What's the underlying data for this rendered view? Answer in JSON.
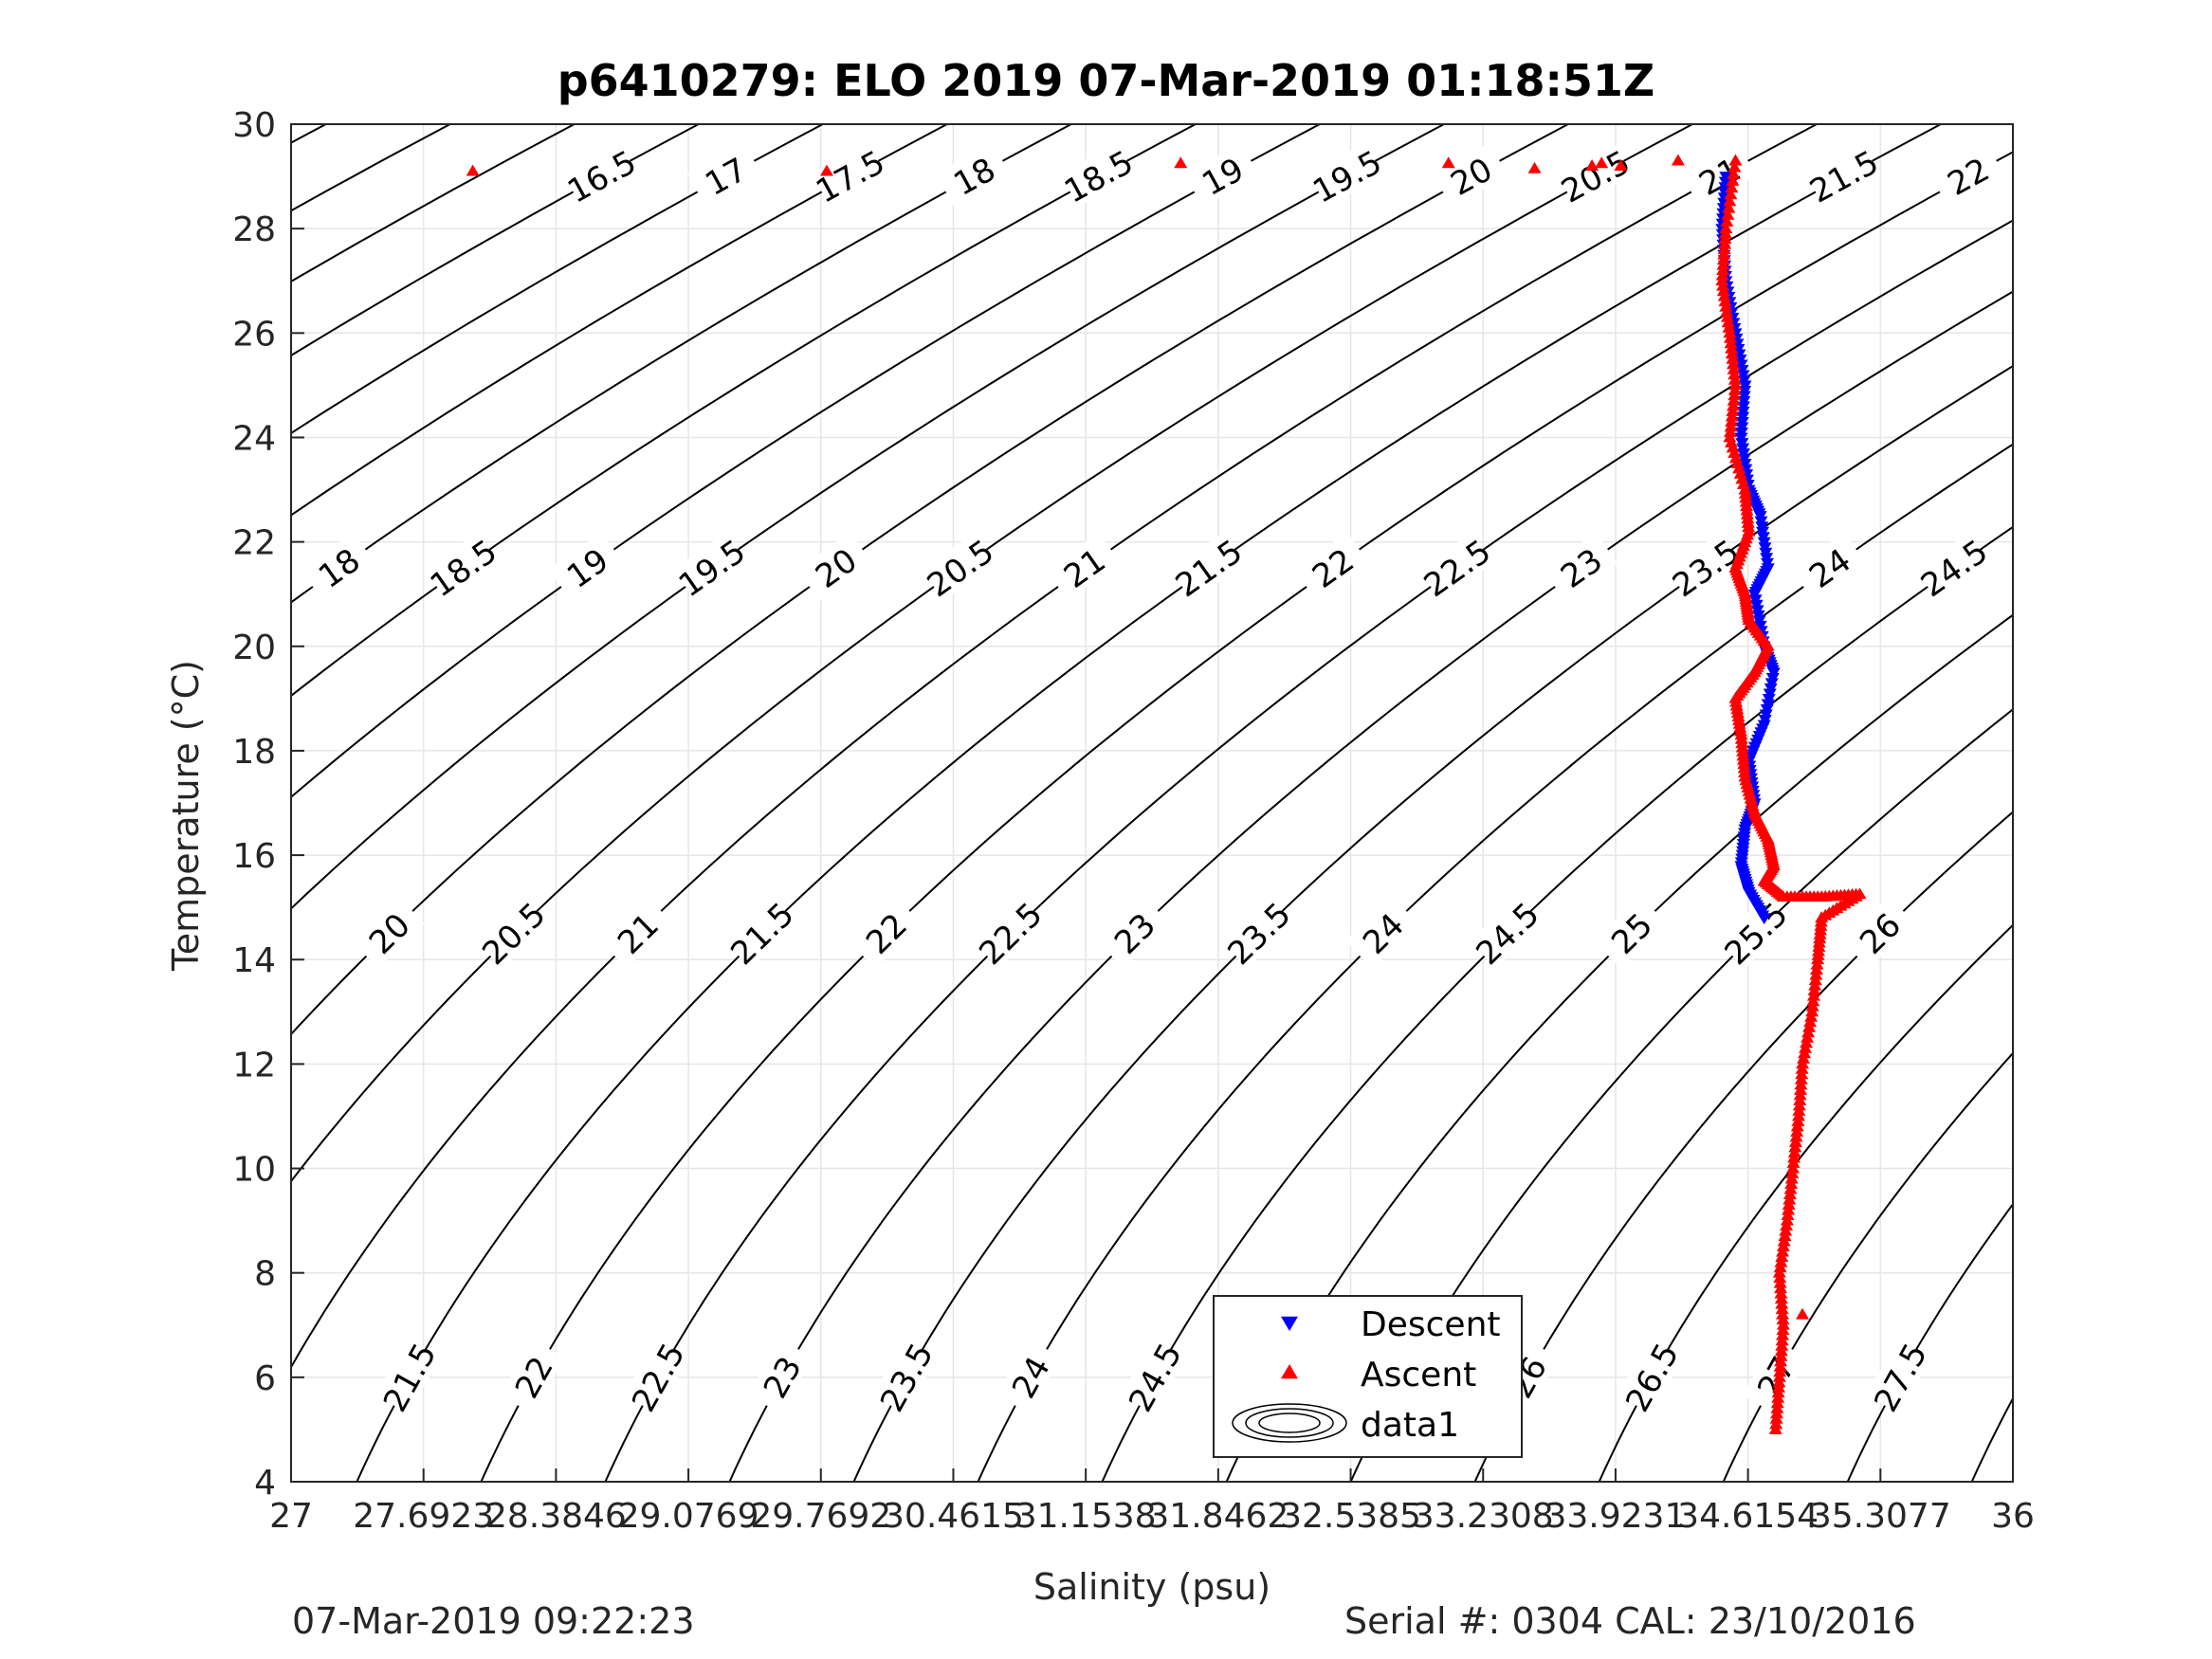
{
  "chart_data": {
    "type": "scatter",
    "title": "p6410279: ELO 2019 07-Mar-2019 01:18:51Z",
    "xlabel": "Salinity (psu)",
    "ylabel": "Temperature (°C)",
    "xlim": [
      27,
      36
    ],
    "ylim": [
      4,
      30
    ],
    "grid": true,
    "x_tick_labels": [
      "27",
      "27.6923",
      "28.3846",
      "29.0769",
      "29.7692",
      "30.4615",
      "31.1538",
      "31.8462",
      "32.5385",
      "33.2308",
      "33.9231",
      "34.6154",
      "35.3077",
      "36"
    ],
    "y_tick_labels": [
      "4",
      "6",
      "8",
      "10",
      "12",
      "14",
      "16",
      "18",
      "20",
      "22",
      "24",
      "26",
      "28",
      "30"
    ],
    "density_contours": [
      "16.5",
      "17",
      "17.5",
      "18",
      "18.5",
      "19",
      "19.5",
      "20",
      "20.5",
      "21",
      "21.5",
      "22",
      "22.5",
      "23",
      "23.5",
      "24",
      "24.5",
      "25",
      "25.5",
      "26",
      "26.5",
      "27",
      "27.5",
      "28"
    ],
    "legend": {
      "position": "bottom-center",
      "entries": [
        "Descent",
        "Ascent",
        "data1"
      ]
    },
    "series": [
      {
        "name": "Descent",
        "marker": "triangle-down",
        "color": "#0000ff",
        "points": [
          [
            34.5,
            29.0
          ],
          [
            34.48,
            28.0
          ],
          [
            34.5,
            27.0
          ],
          [
            34.55,
            26.0
          ],
          [
            34.6,
            25.0
          ],
          [
            34.58,
            24.0
          ],
          [
            34.62,
            23.0
          ],
          [
            34.68,
            22.5
          ],
          [
            34.72,
            21.5
          ],
          [
            34.65,
            21.0
          ],
          [
            34.7,
            20.0
          ],
          [
            34.75,
            19.5
          ],
          [
            34.7,
            18.5
          ],
          [
            34.62,
            17.8
          ],
          [
            34.65,
            17.0
          ],
          [
            34.6,
            16.5
          ],
          [
            34.58,
            15.8
          ],
          [
            34.62,
            15.3
          ],
          [
            34.7,
            14.8
          ]
        ]
      },
      {
        "name": "Ascent",
        "marker": "triangle-up",
        "color": "#ff0000",
        "points": [
          [
            27.95,
            29.1
          ],
          [
            29.8,
            29.1
          ],
          [
            31.65,
            29.25
          ],
          [
            33.05,
            29.25
          ],
          [
            33.5,
            29.15
          ],
          [
            33.8,
            29.2
          ],
          [
            33.85,
            29.25
          ],
          [
            33.95,
            29.2
          ],
          [
            34.25,
            29.3
          ],
          [
            34.55,
            29.3
          ],
          [
            34.5,
            28.0
          ],
          [
            34.48,
            27.0
          ],
          [
            34.52,
            26.0
          ],
          [
            34.55,
            25.0
          ],
          [
            34.52,
            24.0
          ],
          [
            34.6,
            23.0
          ],
          [
            34.62,
            22.2
          ],
          [
            34.55,
            21.5
          ],
          [
            34.6,
            21.0
          ],
          [
            34.62,
            20.5
          ],
          [
            34.72,
            20.0
          ],
          [
            34.65,
            19.5
          ],
          [
            34.55,
            19.0
          ],
          [
            34.58,
            18.3
          ],
          [
            34.6,
            17.5
          ],
          [
            34.65,
            16.8
          ],
          [
            34.72,
            16.3
          ],
          [
            34.75,
            15.8
          ],
          [
            34.7,
            15.5
          ],
          [
            34.8,
            15.2
          ],
          [
            35.0,
            15.2
          ],
          [
            35.2,
            15.25
          ],
          [
            35.0,
            14.8
          ],
          [
            34.98,
            14.0
          ],
          [
            34.95,
            13.0
          ],
          [
            34.9,
            12.0
          ],
          [
            34.88,
            11.0
          ],
          [
            34.85,
            10.0
          ],
          [
            34.82,
            9.0
          ],
          [
            34.78,
            8.0
          ],
          [
            34.8,
            7.0
          ],
          [
            34.78,
            6.0
          ],
          [
            34.76,
            5.0
          ],
          [
            34.9,
            7.2
          ]
        ]
      }
    ]
  },
  "footer": {
    "left": "07-Mar-2019 09:22:23",
    "right": "Serial #: 0304  CAL: 23/10/2016"
  },
  "colors": {
    "descent": "#0000ff",
    "ascent": "#ff0000",
    "contour": "#000000",
    "grid": "#e6e6e6",
    "axis": "#262626"
  }
}
